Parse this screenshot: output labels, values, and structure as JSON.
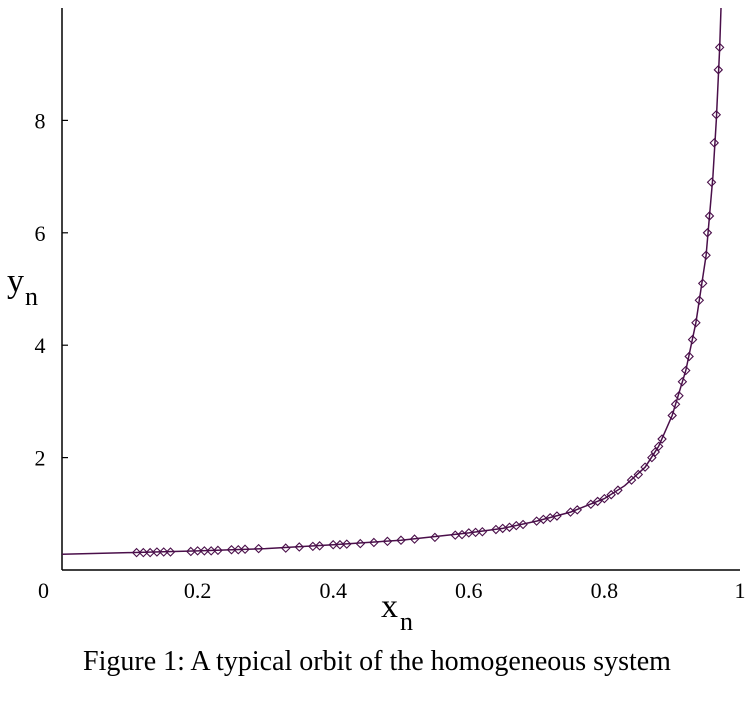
{
  "chart_data": {
    "type": "scatter",
    "caption": "Figure 1: A typical orbit of the homogeneous system",
    "xlabel": "x",
    "xlabel_sub": "n",
    "ylabel": "y",
    "ylabel_sub": "n",
    "xlim": [
      0,
      1
    ],
    "ylim": [
      0,
      10
    ],
    "x_ticks": [
      "0",
      "0.2",
      "0.4",
      "0.6",
      "0.8",
      "1"
    ],
    "y_ticks": [
      "2",
      "4",
      "6",
      "8"
    ],
    "grid": false,
    "line_color": "#4a0f4a",
    "marker_color": "#4a0f4a",
    "marker": "diamond",
    "curve": [
      {
        "x": 0.0,
        "y": 0.28
      },
      {
        "x": 0.1,
        "y": 0.31
      },
      {
        "x": 0.2,
        "y": 0.34
      },
      {
        "x": 0.3,
        "y": 0.38
      },
      {
        "x": 0.4,
        "y": 0.45
      },
      {
        "x": 0.5,
        "y": 0.53
      },
      {
        "x": 0.6,
        "y": 0.66
      },
      {
        "x": 0.65,
        "y": 0.74
      },
      {
        "x": 0.7,
        "y": 0.87
      },
      {
        "x": 0.75,
        "y": 1.03
      },
      {
        "x": 0.8,
        "y": 1.27
      },
      {
        "x": 0.83,
        "y": 1.5
      },
      {
        "x": 0.86,
        "y": 1.83
      },
      {
        "x": 0.88,
        "y": 2.2
      },
      {
        "x": 0.9,
        "y": 2.75
      },
      {
        "x": 0.92,
        "y": 3.55
      },
      {
        "x": 0.935,
        "y": 4.4
      },
      {
        "x": 0.95,
        "y": 5.6
      },
      {
        "x": 0.96,
        "y": 7.0
      },
      {
        "x": 0.965,
        "y": 8.0
      },
      {
        "x": 0.97,
        "y": 9.3
      },
      {
        "x": 0.972,
        "y": 10.0
      }
    ],
    "points": [
      {
        "x": 0.11,
        "y": 0.31
      },
      {
        "x": 0.12,
        "y": 0.31
      },
      {
        "x": 0.13,
        "y": 0.31
      },
      {
        "x": 0.14,
        "y": 0.32
      },
      {
        "x": 0.15,
        "y": 0.32
      },
      {
        "x": 0.16,
        "y": 0.32
      },
      {
        "x": 0.19,
        "y": 0.33
      },
      {
        "x": 0.2,
        "y": 0.34
      },
      {
        "x": 0.21,
        "y": 0.34
      },
      {
        "x": 0.22,
        "y": 0.34
      },
      {
        "x": 0.23,
        "y": 0.35
      },
      {
        "x": 0.25,
        "y": 0.36
      },
      {
        "x": 0.26,
        "y": 0.36
      },
      {
        "x": 0.27,
        "y": 0.37
      },
      {
        "x": 0.29,
        "y": 0.38
      },
      {
        "x": 0.33,
        "y": 0.39
      },
      {
        "x": 0.35,
        "y": 0.41
      },
      {
        "x": 0.37,
        "y": 0.42
      },
      {
        "x": 0.38,
        "y": 0.43
      },
      {
        "x": 0.4,
        "y": 0.45
      },
      {
        "x": 0.41,
        "y": 0.45
      },
      {
        "x": 0.42,
        "y": 0.46
      },
      {
        "x": 0.44,
        "y": 0.47
      },
      {
        "x": 0.46,
        "y": 0.49
      },
      {
        "x": 0.48,
        "y": 0.51
      },
      {
        "x": 0.5,
        "y": 0.53
      },
      {
        "x": 0.52,
        "y": 0.55
      },
      {
        "x": 0.55,
        "y": 0.58
      },
      {
        "x": 0.58,
        "y": 0.62
      },
      {
        "x": 0.59,
        "y": 0.63
      },
      {
        "x": 0.6,
        "y": 0.66
      },
      {
        "x": 0.61,
        "y": 0.67
      },
      {
        "x": 0.62,
        "y": 0.68
      },
      {
        "x": 0.64,
        "y": 0.72
      },
      {
        "x": 0.65,
        "y": 0.74
      },
      {
        "x": 0.66,
        "y": 0.76
      },
      {
        "x": 0.67,
        "y": 0.79
      },
      {
        "x": 0.68,
        "y": 0.81
      },
      {
        "x": 0.7,
        "y": 0.87
      },
      {
        "x": 0.71,
        "y": 0.9
      },
      {
        "x": 0.72,
        "y": 0.93
      },
      {
        "x": 0.73,
        "y": 0.96
      },
      {
        "x": 0.75,
        "y": 1.03
      },
      {
        "x": 0.76,
        "y": 1.07
      },
      {
        "x": 0.78,
        "y": 1.17
      },
      {
        "x": 0.79,
        "y": 1.22
      },
      {
        "x": 0.8,
        "y": 1.27
      },
      {
        "x": 0.81,
        "y": 1.34
      },
      {
        "x": 0.82,
        "y": 1.42
      },
      {
        "x": 0.84,
        "y": 1.6
      },
      {
        "x": 0.85,
        "y": 1.7
      },
      {
        "x": 0.86,
        "y": 1.83
      },
      {
        "x": 0.87,
        "y": 2.0
      },
      {
        "x": 0.875,
        "y": 2.1
      },
      {
        "x": 0.88,
        "y": 2.2
      },
      {
        "x": 0.885,
        "y": 2.33
      },
      {
        "x": 0.9,
        "y": 2.75
      },
      {
        "x": 0.905,
        "y": 2.95
      },
      {
        "x": 0.91,
        "y": 3.1
      },
      {
        "x": 0.915,
        "y": 3.35
      },
      {
        "x": 0.92,
        "y": 3.55
      },
      {
        "x": 0.925,
        "y": 3.8
      },
      {
        "x": 0.93,
        "y": 4.1
      },
      {
        "x": 0.935,
        "y": 4.4
      },
      {
        "x": 0.94,
        "y": 4.8
      },
      {
        "x": 0.945,
        "y": 5.1
      },
      {
        "x": 0.95,
        "y": 5.6
      },
      {
        "x": 0.952,
        "y": 6.0
      },
      {
        "x": 0.955,
        "y": 6.3
      },
      {
        "x": 0.958,
        "y": 6.9
      },
      {
        "x": 0.962,
        "y": 7.6
      },
      {
        "x": 0.965,
        "y": 8.1
      },
      {
        "x": 0.968,
        "y": 8.9
      },
      {
        "x": 0.97,
        "y": 9.3
      }
    ]
  }
}
